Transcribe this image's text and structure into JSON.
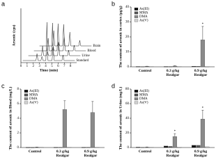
{
  "chart_data": [
    {
      "type": "chromatogram",
      "panel": "a",
      "xlabel": "Time (min)",
      "ylabel": "Arsenic (cps)",
      "xlim": [
        0,
        9
      ],
      "xticks": [
        0,
        1,
        2,
        3,
        4,
        5,
        6,
        7,
        8
      ],
      "traces": [
        "Standard",
        "Urine",
        "Blood",
        "Brain"
      ]
    },
    {
      "type": "bar",
      "panel": "b",
      "ylabel": "The content of arsenic in cortex (μg/g)",
      "categories": [
        "Control",
        "0.3 g/kg\nRealgar",
        "0.9 g/kg\nRealgar"
      ],
      "ylim": [
        0,
        40
      ],
      "yticks": [
        0,
        10,
        20,
        30,
        40
      ],
      "series": [
        {
          "name": "As(III)",
          "color": "#111111",
          "values": [
            0.2,
            0.2,
            0.3
          ]
        },
        {
          "name": "MMA",
          "color": "#555555",
          "values": [
            0.1,
            0.2,
            0.3
          ]
        },
        {
          "name": "DMA",
          "color": "#8a8a8a",
          "values": [
            0.3,
            0.5,
            18
          ],
          "errors": [
            0.1,
            0.2,
            9
          ],
          "annotations": [
            null,
            null,
            "*"
          ]
        },
        {
          "name": "As(V)",
          "color": "#d0d0d0",
          "values": [
            0.1,
            0.1,
            0.2
          ]
        }
      ]
    },
    {
      "type": "bar",
      "panel": "c",
      "ylabel": "The content of arsenic in Blood (mg/L)",
      "categories": [
        "Control",
        "0.3 g/kg\nRealgar",
        "0.9 g/kg\nRealgar"
      ],
      "ylim": [
        0,
        8
      ],
      "yticks": [
        0,
        2,
        4,
        6,
        8
      ],
      "series": [
        {
          "name": "As(III)",
          "color": "#111111",
          "values": [
            0.02,
            0.03,
            0.03
          ]
        },
        {
          "name": "MMA",
          "color": "#555555",
          "values": [
            0.01,
            0.03,
            0.04
          ]
        },
        {
          "name": "DMA",
          "color": "#8a8a8a",
          "values": [
            0.05,
            5.2,
            4.8
          ],
          "errors": [
            0.02,
            1.2,
            1.5
          ]
        },
        {
          "name": "As(V)",
          "color": "#d0d0d0",
          "values": [
            0.01,
            0.02,
            0.02
          ]
        }
      ]
    },
    {
      "type": "bar",
      "panel": "d",
      "ylabel": "The content of arsenic in Urine (mg/L)",
      "categories": [
        "Control",
        "0.3 g/kg\nRealgar",
        "0.9 g/kg\nRealgar"
      ],
      "ylim": [
        0,
        80
      ],
      "yticks": [
        0,
        20,
        40,
        60,
        80
      ],
      "series": [
        {
          "name": "As(III)",
          "color": "#111111",
          "values": [
            0.5,
            2,
            3
          ]
        },
        {
          "name": "MMA",
          "color": "#555555",
          "values": [
            0.3,
            1.5,
            3
          ]
        },
        {
          "name": "DMA",
          "color": "#8a8a8a",
          "values": [
            0.5,
            15,
            39
          ],
          "errors": [
            0.3,
            4,
            12
          ],
          "annotations": [
            null,
            "*",
            "*"
          ]
        },
        {
          "name": "As(V)",
          "color": "#d0d0d0",
          "values": [
            0.2,
            0.5,
            1
          ]
        }
      ]
    }
  ]
}
